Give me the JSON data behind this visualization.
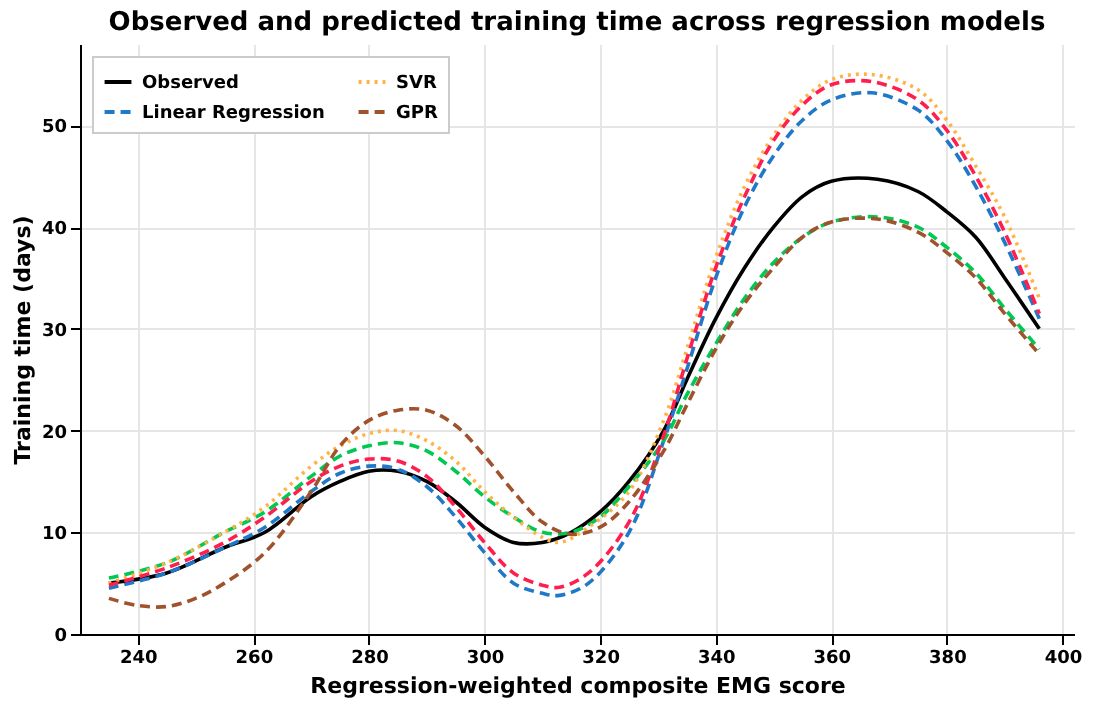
{
  "chart_data": {
    "type": "line",
    "title": "Observed and predicted training time across regression models",
    "xlabel": "Regression-weighted composite EMG score",
    "ylabel": "Training time (days)",
    "xlim": [
      230,
      402
    ],
    "ylim": [
      0,
      58
    ],
    "xticks": [
      240,
      260,
      280,
      300,
      320,
      340,
      360,
      380,
      400
    ],
    "yticks": [
      0,
      10,
      20,
      30,
      40,
      50
    ],
    "grid": true,
    "legend": "top left",
    "series": [
      {
        "name": "Observed",
        "color": "#000000",
        "line_style": "solid",
        "x": [
          235,
          245,
          255,
          262,
          270,
          275,
          280,
          285,
          290,
          295,
          300,
          305,
          310,
          315,
          320,
          325,
          331,
          335,
          340,
          345,
          350,
          355,
          360,
          368,
          375,
          380,
          385,
          390,
          396
        ],
        "values": [
          5,
          6,
          8.5,
          10,
          13.5,
          15,
          16,
          16,
          15,
          13,
          10.5,
          9,
          9,
          10,
          12,
          15,
          20,
          25,
          31,
          36,
          40,
          43,
          44.5,
          44.7,
          43.5,
          41.5,
          39,
          35,
          30
        ]
      },
      {
        "name": "Linear Regression",
        "color": "#1f78c8",
        "line_style": "dashed",
        "x": [
          235,
          245,
          255,
          262,
          270,
          275,
          280,
          285,
          290,
          295,
          300,
          305,
          310,
          313,
          318,
          325,
          331,
          335,
          340,
          345,
          350,
          355,
          360,
          367,
          375,
          380,
          385,
          390,
          396
        ],
        "values": [
          4.5,
          6,
          8.5,
          10.5,
          14,
          15.8,
          16.5,
          16.2,
          14.5,
          11.5,
          8,
          5,
          4,
          3.8,
          5,
          10,
          19,
          26,
          35,
          42,
          47,
          50.5,
          52.5,
          53.2,
          51.5,
          48.5,
          44,
          38.5,
          31
        ]
      },
      {
        "color": "#00c853",
        "line_style": "dashed",
        "x": [
          235,
          245,
          255,
          262,
          270,
          275,
          280,
          285,
          290,
          295,
          300,
          305,
          310,
          315,
          320,
          325,
          331,
          335,
          340,
          345,
          350,
          355,
          360,
          368,
          375,
          380,
          385,
          390,
          396
        ],
        "values": [
          5.5,
          7,
          10,
          12,
          15.5,
          17.5,
          18.5,
          18.8,
          18,
          16,
          13.5,
          11.5,
          10,
          10,
          11.5,
          14.5,
          19,
          23.5,
          28.5,
          33,
          36.5,
          39,
          40.5,
          41,
          40,
          38,
          35.5,
          32,
          28
        ]
      },
      {
        "name": "SVR",
        "color": "#ffb347",
        "line_style": "dotted",
        "x": [
          235,
          245,
          255,
          262,
          270,
          275,
          280,
          285,
          290,
          295,
          300,
          305,
          310,
          313,
          318,
          325,
          331,
          335,
          340,
          345,
          350,
          355,
          360,
          367,
          375,
          380,
          385,
          390,
          396
        ],
        "values": [
          5,
          7,
          10,
          12.5,
          16.5,
          18.5,
          19.7,
          20,
          19,
          17,
          14,
          11.5,
          9.5,
          9,
          10.5,
          14,
          21,
          28,
          37,
          44,
          49,
          52.5,
          54.5,
          55,
          53.5,
          50.5,
          46,
          41,
          33
        ]
      },
      {
        "color": "#ff1f4f",
        "line_style": "dashed",
        "x": [
          235,
          245,
          255,
          262,
          270,
          275,
          280,
          285,
          290,
          295,
          300,
          305,
          310,
          313,
          318,
          325,
          331,
          335,
          340,
          345,
          350,
          355,
          360,
          367,
          375,
          380,
          385,
          390,
          396
        ],
        "values": [
          4.8,
          6.5,
          9,
          11.5,
          15,
          16.5,
          17.2,
          17,
          15.5,
          12.5,
          9,
          6,
          4.8,
          4.6,
          6,
          11,
          19.5,
          27,
          36,
          43,
          48.5,
          52,
          54,
          54.3,
          52.5,
          49.5,
          45,
          39.5,
          31.5
        ]
      },
      {
        "name": "GPR",
        "color": "#a0522d",
        "line_style": "dashed",
        "x": [
          235,
          240,
          245,
          250,
          255,
          262,
          270,
          275,
          280,
          285,
          290,
          295,
          300,
          305,
          310,
          315,
          320,
          325,
          331,
          335,
          340,
          345,
          350,
          355,
          360,
          368,
          375,
          380,
          385,
          390,
          396
        ],
        "values": [
          3.5,
          2.8,
          2.7,
          3.5,
          5,
          8,
          14,
          18.5,
          21,
          22,
          22,
          20.5,
          17.5,
          14,
          11,
          9.8,
          10.5,
          13,
          18,
          22.5,
          28,
          32.5,
          36,
          39,
          40.5,
          40.8,
          39.5,
          37.5,
          35,
          31.5,
          27.5
        ]
      }
    ]
  }
}
